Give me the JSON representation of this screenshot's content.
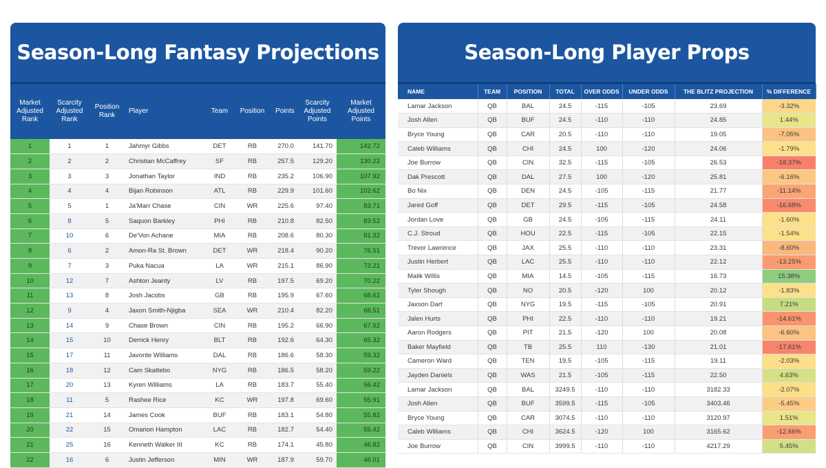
{
  "left": {
    "title": "Season-Long Fantasy Projections",
    "headers": {
      "market": "Market Adjusted Rank",
      "scarcity": "Scarcity Adjusted Rank",
      "position_rank": "Position Rank",
      "player": "Player",
      "team": "Team",
      "position": "Position",
      "points": "Points",
      "scarcity_points": "Scarcity Adjusted Points",
      "market_points": "Market Adjusted Points"
    },
    "rows": [
      {
        "market": "1",
        "scarcity": "1",
        "pos_rank": "1",
        "player": "Jahmyr Gibbs",
        "team": "DET",
        "position": "RB",
        "points": "270.0",
        "scar_pts": "141.70",
        "mkt_pts": "142.72"
      },
      {
        "market": "2",
        "scarcity": "2",
        "pos_rank": "2",
        "player": "Christian McCaffrey",
        "team": "SF",
        "position": "RB",
        "points": "257.5",
        "scar_pts": "129.20",
        "mkt_pts": "130.22"
      },
      {
        "market": "3",
        "scarcity": "3",
        "pos_rank": "3",
        "player": "Jonathan Taylor",
        "team": "IND",
        "position": "RB",
        "points": "235.2",
        "scar_pts": "106.90",
        "mkt_pts": "107.92"
      },
      {
        "market": "4",
        "scarcity": "4",
        "pos_rank": "4",
        "player": "Bijan Robinson",
        "team": "ATL",
        "position": "RB",
        "points": "229.9",
        "scar_pts": "101.60",
        "mkt_pts": "102.62"
      },
      {
        "market": "5",
        "scarcity": "5",
        "pos_rank": "1",
        "player": "Ja'Marr Chase",
        "team": "CIN",
        "position": "WR",
        "points": "225.6",
        "scar_pts": "97.40",
        "mkt_pts": "83.71"
      },
      {
        "market": "6",
        "scarcity": "8",
        "pos_rank": "5",
        "player": "Saquon Barkley",
        "team": "PHI",
        "position": "RB",
        "points": "210.8",
        "scar_pts": "82.50",
        "mkt_pts": "83.52"
      },
      {
        "market": "7",
        "scarcity": "10",
        "pos_rank": "6",
        "player": "De'Von Achane",
        "team": "MIA",
        "position": "RB",
        "points": "208.6",
        "scar_pts": "80.30",
        "mkt_pts": "81.32"
      },
      {
        "market": "8",
        "scarcity": "6",
        "pos_rank": "2",
        "player": "Amon-Ra St. Brown",
        "team": "DET",
        "position": "WR",
        "points": "218.4",
        "scar_pts": "90.20",
        "mkt_pts": "76.51"
      },
      {
        "market": "9",
        "scarcity": "7",
        "pos_rank": "3",
        "player": "Puka Nacua",
        "team": "LA",
        "position": "WR",
        "points": "215.1",
        "scar_pts": "86.90",
        "mkt_pts": "73.21"
      },
      {
        "market": "10",
        "scarcity": "12",
        "pos_rank": "7",
        "player": "Ashton Jeanty",
        "team": "LV",
        "position": "RB",
        "points": "197.5",
        "scar_pts": "69.20",
        "mkt_pts": "70.22"
      },
      {
        "market": "11",
        "scarcity": "13",
        "pos_rank": "8",
        "player": "Josh Jacobs",
        "team": "GB",
        "position": "RB",
        "points": "195.9",
        "scar_pts": "67.60",
        "mkt_pts": "68.62"
      },
      {
        "market": "12",
        "scarcity": "9",
        "pos_rank": "4",
        "player": "Jaxon Smith-Njigba",
        "team": "SEA",
        "position": "WR",
        "points": "210.4",
        "scar_pts": "82.20",
        "mkt_pts": "68.51"
      },
      {
        "market": "13",
        "scarcity": "14",
        "pos_rank": "9",
        "player": "Chase Brown",
        "team": "CIN",
        "position": "RB",
        "points": "195.2",
        "scar_pts": "66.90",
        "mkt_pts": "67.92"
      },
      {
        "market": "14",
        "scarcity": "15",
        "pos_rank": "10",
        "player": "Derrick Henry",
        "team": "BLT",
        "position": "RB",
        "points": "192.6",
        "scar_pts": "64.30",
        "mkt_pts": "65.32"
      },
      {
        "market": "15",
        "scarcity": "17",
        "pos_rank": "11",
        "player": "Javonte Williams",
        "team": "DAL",
        "position": "RB",
        "points": "186.6",
        "scar_pts": "58.30",
        "mkt_pts": "59.32"
      },
      {
        "market": "16",
        "scarcity": "18",
        "pos_rank": "12",
        "player": "Cam Skattebo",
        "team": "NYG",
        "position": "RB",
        "points": "186.5",
        "scar_pts": "58.20",
        "mkt_pts": "59.22"
      },
      {
        "market": "17",
        "scarcity": "20",
        "pos_rank": "13",
        "player": "Kyren Williams",
        "team": "LA",
        "position": "RB",
        "points": "183.7",
        "scar_pts": "55.40",
        "mkt_pts": "56.42"
      },
      {
        "market": "18",
        "scarcity": "11",
        "pos_rank": "5",
        "player": "Rashee Rice",
        "team": "KC",
        "position": "WR",
        "points": "197.8",
        "scar_pts": "69.60",
        "mkt_pts": "55.91"
      },
      {
        "market": "19",
        "scarcity": "21",
        "pos_rank": "14",
        "player": "James Cook",
        "team": "BUF",
        "position": "RB",
        "points": "183.1",
        "scar_pts": "54.80",
        "mkt_pts": "55.82"
      },
      {
        "market": "20",
        "scarcity": "22",
        "pos_rank": "15",
        "player": "Omarion Hampton",
        "team": "LAC",
        "position": "RB",
        "points": "182.7",
        "scar_pts": "54.40",
        "mkt_pts": "55.42"
      },
      {
        "market": "21",
        "scarcity": "25",
        "pos_rank": "16",
        "player": "Kenneth Walker III",
        "team": "KC",
        "position": "RB",
        "points": "174.1",
        "scar_pts": "45.80",
        "mkt_pts": "46.82"
      },
      {
        "market": "22",
        "scarcity": "16",
        "pos_rank": "6",
        "player": "Justin Jefferson",
        "team": "MIN",
        "position": "WR",
        "points": "187.9",
        "scar_pts": "59.70",
        "mkt_pts": "46.01"
      }
    ]
  },
  "right": {
    "title": "Season-Long Player Props",
    "headers": {
      "name": "NAME",
      "team": "TEAM",
      "position": "POSITION",
      "total": "TOTAL",
      "over": "OVER ODDS",
      "under": "UNDER ODDS",
      "projection": "THE BLITZ PROJECTION",
      "diff": "% DIFFERENCE"
    },
    "rows": [
      {
        "name": "Lamar Jackson",
        "team": "QB",
        "position": "BAL",
        "total": "24.5",
        "over": "-115",
        "under": "-105",
        "proj": "23.69",
        "diff": "-3.32%",
        "diff_color": "#fbd889"
      },
      {
        "name": "Josh Allen",
        "team": "QB",
        "position": "BUF",
        "total": "24.5",
        "over": "-110",
        "under": "-110",
        "proj": "24.85",
        "diff": "1.44%",
        "diff_color": "#e9e589"
      },
      {
        "name": "Bryce Young",
        "team": "QB",
        "position": "CAR",
        "total": "20.5",
        "over": "-110",
        "under": "-110",
        "proj": "19.05",
        "diff": "-7.05%",
        "diff_color": "#fcc281"
      },
      {
        "name": "Caleb Williams",
        "team": "QB",
        "position": "CHI",
        "total": "24.5",
        "over": "100",
        "under": "-120",
        "proj": "24.06",
        "diff": "-1.79%",
        "diff_color": "#fde08a"
      },
      {
        "name": "Joe Burrow",
        "team": "QB",
        "position": "CIN",
        "total": "32.5",
        "over": "-115",
        "under": "-105",
        "proj": "26.53",
        "diff": "-18.37%",
        "diff_color": "#f8806a"
      },
      {
        "name": "Dak Prescott",
        "team": "QB",
        "position": "DAL",
        "total": "27.5",
        "over": "100",
        "under": "-120",
        "proj": "25.81",
        "diff": "-6.16%",
        "diff_color": "#fcc683"
      },
      {
        "name": "Bo Nix",
        "team": "QB",
        "position": "DEN",
        "total": "24.5",
        "over": "-105",
        "under": "-115",
        "proj": "21.77",
        "diff": "-11.14%",
        "diff_color": "#faa575"
      },
      {
        "name": "Jared Goff",
        "team": "QB",
        "position": "DET",
        "total": "29.5",
        "over": "-115",
        "under": "-105",
        "proj": "24.58",
        "diff": "-16.68%",
        "diff_color": "#f98a6c"
      },
      {
        "name": "Jordan Love",
        "team": "QB",
        "position": "GB",
        "total": "24.5",
        "over": "-105",
        "under": "-115",
        "proj": "24.11",
        "diff": "-1.60%",
        "diff_color": "#fde18a"
      },
      {
        "name": "C.J. Stroud",
        "team": "QB",
        "position": "HOU",
        "total": "22.5",
        "over": "-115",
        "under": "-105",
        "proj": "22.15",
        "diff": "-1.54%",
        "diff_color": "#fde18a"
      },
      {
        "name": "Trevor Lawrence",
        "team": "QB",
        "position": "JAX",
        "total": "25.5",
        "over": "-110",
        "under": "-110",
        "proj": "23.31",
        "diff": "-8.60%",
        "diff_color": "#fbb87c"
      },
      {
        "name": "Justin Herbert",
        "team": "QB",
        "position": "LAC",
        "total": "25.5",
        "over": "-110",
        "under": "-110",
        "proj": "22.12",
        "diff": "-13.25%",
        "diff_color": "#fa9b71"
      },
      {
        "name": "Malik Willis",
        "team": "QB",
        "position": "MIA",
        "total": "14.5",
        "over": "-105",
        "under": "-115",
        "proj": "16.73",
        "diff": "15.38%",
        "diff_color": "#8fcd7e"
      },
      {
        "name": "Tyler Shough",
        "team": "QB",
        "position": "NO",
        "total": "20.5",
        "over": "-120",
        "under": "100",
        "proj": "20.12",
        "diff": "-1.83%",
        "diff_color": "#fde08a"
      },
      {
        "name": "Jaxson Dart",
        "team": "QB",
        "position": "NYG",
        "total": "19.5",
        "over": "-115",
        "under": "-105",
        "proj": "20.91",
        "diff": "7.21%",
        "diff_color": "#c7dc81"
      },
      {
        "name": "Jalen Hurts",
        "team": "QB",
        "position": "PHI",
        "total": "22.5",
        "over": "-110",
        "under": "-110",
        "proj": "19.21",
        "diff": "-14.61%",
        "diff_color": "#f9946f"
      },
      {
        "name": "Aaron Rodgers",
        "team": "QB",
        "position": "PIT",
        "total": "21.5",
        "over": "-120",
        "under": "100",
        "proj": "20.08",
        "diff": "-6.60%",
        "diff_color": "#fcc382"
      },
      {
        "name": "Baker Mayfield",
        "team": "QB",
        "position": "TB",
        "total": "25.5",
        "over": "110",
        "under": "-130",
        "proj": "21.01",
        "diff": "-17.61%",
        "diff_color": "#f8846b"
      },
      {
        "name": "Cameron Ward",
        "team": "QB",
        "position": "TEN",
        "total": "19.5",
        "over": "-105",
        "under": "-115",
        "proj": "19.11",
        "diff": "-2.03%",
        "diff_color": "#fdde89"
      },
      {
        "name": "Jayden Daniels",
        "team": "QB",
        "position": "WAS",
        "total": "21.5",
        "over": "-105",
        "under": "-115",
        "proj": "22.50",
        "diff": "4.63%",
        "diff_color": "#d6e084"
      },
      {
        "name": "Lamar Jackson",
        "team": "QB",
        "position": "BAL",
        "total": "3249.5",
        "over": "-110",
        "under": "-110",
        "proj": "3182.33",
        "diff": "-2.07%",
        "diff_color": "#fdde89"
      },
      {
        "name": "Josh Allen",
        "team": "QB",
        "position": "BUF",
        "total": "3599.5",
        "over": "-115",
        "under": "-105",
        "proj": "3403.46",
        "diff": "-5.45%",
        "diff_color": "#fccc85"
      },
      {
        "name": "Bryce Young",
        "team": "QB",
        "position": "CAR",
        "total": "3074.5",
        "over": "-110",
        "under": "-110",
        "proj": "3120.97",
        "diff": "1.51%",
        "diff_color": "#e9e589"
      },
      {
        "name": "Caleb Williams",
        "team": "QB",
        "position": "CHI",
        "total": "3624.5",
        "over": "-120",
        "under": "100",
        "proj": "3165.62",
        "diff": "-12.66%",
        "diff_color": "#fa9e72"
      },
      {
        "name": "Joe Burrow",
        "team": "QB",
        "position": "CIN",
        "total": "3999.5",
        "over": "-110",
        "under": "-110",
        "proj": "4217.29",
        "diff": "5.45%",
        "diff_color": "#d2df83"
      }
    ]
  }
}
